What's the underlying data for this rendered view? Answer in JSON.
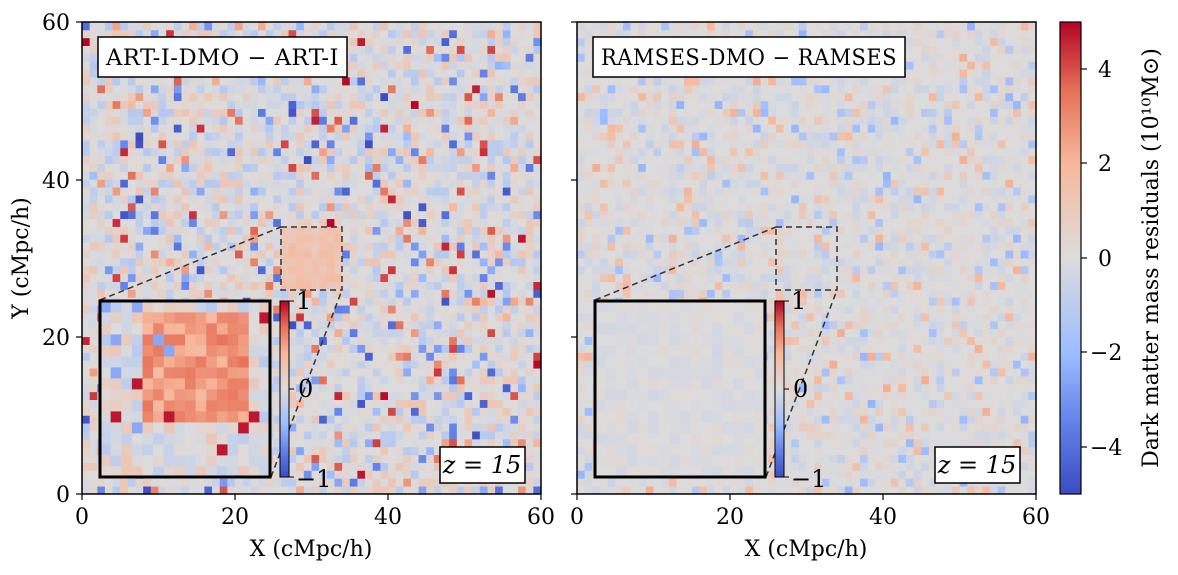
{
  "chart_data": {
    "type": "heatmap",
    "grid_cells": 60,
    "colormap": "coolwarm",
    "colors": {
      "negative": "#3b4cc0",
      "neutral": "#dddddd",
      "positive": "#b40426"
    },
    "panels": [
      {
        "title": "ART-I-DMO − ART-I",
        "redshift_label": "z = 15",
        "xlabel": "X (cMpc/h)",
        "ylabel": "Y (cMpc/h)",
        "xlim": [
          0,
          60
        ],
        "ylim": [
          0,
          60
        ],
        "xticks": [
          "0",
          "20",
          "40",
          "60"
        ],
        "yticks": [
          "0",
          "20",
          "40",
          "60"
        ],
        "noise_amplitude": 1.0,
        "overdense_region": {
          "x_range": [
            26,
            34
          ],
          "y_range": [
            26,
            34
          ],
          "level": 1.3
        },
        "zoom_region": {
          "x_range": [
            26,
            34
          ],
          "y_range": [
            26,
            34
          ]
        },
        "inset": {
          "colorbar_ticks": [
            "1",
            "0",
            "−1"
          ],
          "vmin": -1,
          "vmax": 1
        }
      },
      {
        "title": "RAMSES-DMO − RAMSES",
        "redshift_label": "z = 15",
        "xlabel": "X (cMpc/h)",
        "ylabel": "",
        "xlim": [
          0,
          60
        ],
        "ylim": [
          0,
          60
        ],
        "xticks": [
          "0",
          "20",
          "40",
          "60"
        ],
        "yticks": [],
        "noise_amplitude": 0.45,
        "overdense_region": {
          "x_range": [
            26,
            34
          ],
          "y_range": [
            26,
            34
          ],
          "level": 0.0
        },
        "zoom_region": {
          "x_range": [
            26,
            34
          ],
          "y_range": [
            26,
            34
          ]
        },
        "inset": {
          "colorbar_ticks": [
            "1",
            "0",
            "−1"
          ],
          "vmin": -1,
          "vmax": 1
        }
      }
    ],
    "colorbar": {
      "label": "Dark matter mass residuals (10¹⁰M⊙)",
      "vmin": -5,
      "vmax": 5,
      "ticks": [
        "4",
        "2",
        "0",
        "−2",
        "−4"
      ],
      "tick_values": [
        4,
        2,
        0,
        -2,
        -4
      ]
    }
  }
}
